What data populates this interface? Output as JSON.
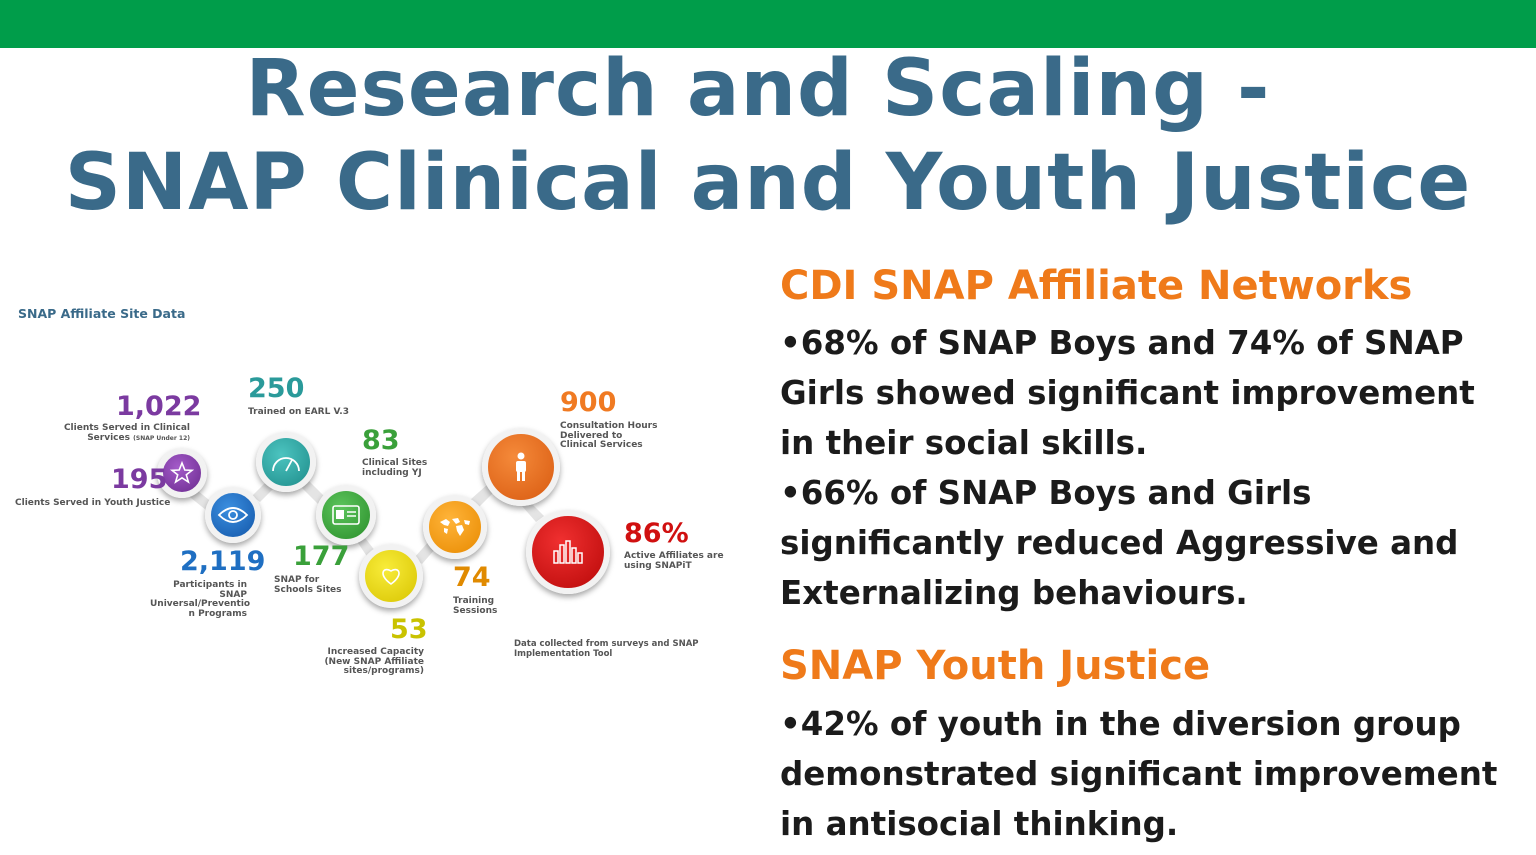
{
  "title": {
    "line1": "Research and Scaling -",
    "line2": "SNAP Clinical and Youth Justice"
  },
  "infographic": {
    "heading": "SNAP Affiliate Site Data",
    "footnote": "Data collected from surveys and SNAP Implementation Tool",
    "stats": [
      {
        "value": "1,022",
        "label": "Clients Served in Clinical Services",
        "sublabel": "(SNAP Under 12)",
        "color": "#7b3aa0"
      },
      {
        "value": "195",
        "label": "Clients Served in Youth Justice",
        "color": "#7b3aa0"
      },
      {
        "value": "250",
        "label": "Trained on EARL V.3",
        "color": "#2a9a9a"
      },
      {
        "value": "2,119",
        "label": "Participants in SNAP Universal/Preventio n Programs",
        "color": "#1f6fc2"
      },
      {
        "value": "83",
        "label": "Clinical Sites including YJ",
        "color": "#3aa03a"
      },
      {
        "value": "177",
        "label": "SNAP for Schools Sites",
        "color": "#3aa03a"
      },
      {
        "value": "53",
        "label": "Increased Capacity (New SNAP Affiliate sites/programs)",
        "color": "#c9c200"
      },
      {
        "value": "74",
        "label": "Training Sessions",
        "color": "#e08a00"
      },
      {
        "value": "900",
        "label": "Consultation Hours Delivered to Clinical Services",
        "color": "#f07a22"
      },
      {
        "value": "86%",
        "label": "Active Affiliates are using SNAPiT",
        "color": "#d01010"
      }
    ],
    "icons": [
      "star-icon",
      "eye-icon",
      "gauge-icon",
      "id-card-icon",
      "heart-icon",
      "globe-map-icon",
      "person-icon",
      "bar-chart-icon"
    ]
  },
  "sections": [
    {
      "heading": "CDI SNAP Affiliate Networks",
      "lines": [
        "•68% of SNAP Boys and 74% of SNAP",
        "Girls showed significant improvement",
        "in their social skills.",
        "•66% of SNAP Boys and Girls",
        "significantly reduced Aggressive and",
        "Externalizing behaviours."
      ]
    },
    {
      "heading": "SNAP Youth Justice",
      "lines": [
        "•42% of youth in the diversion group",
        "demonstrated significant improvement",
        "in antisocial thinking."
      ]
    }
  ],
  "colors": {
    "topbar": "#009d4a",
    "title": "#3a6a89",
    "subhead": "#ef7a1a",
    "body": "#1b1b1b"
  }
}
